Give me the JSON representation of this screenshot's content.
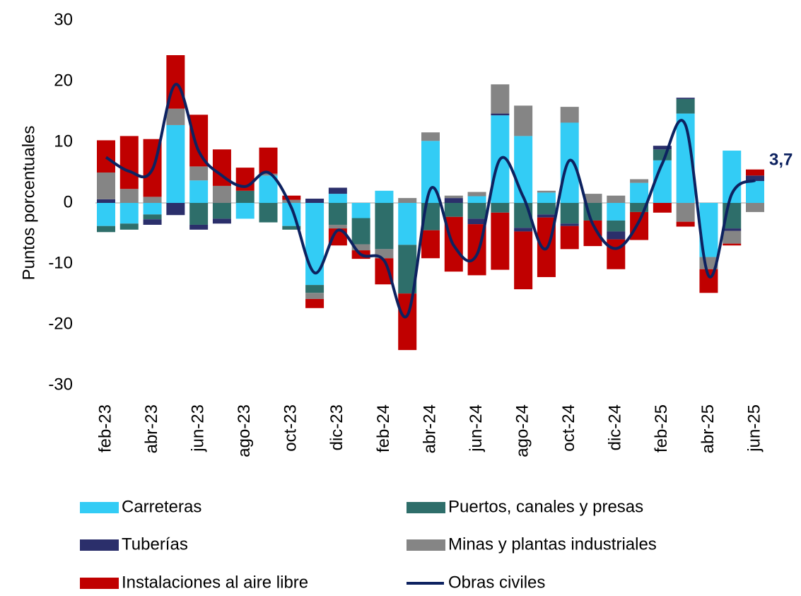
{
  "chart_data": {
    "type": "bar-line",
    "y_label": "Puntos porcentuales",
    "categories": [
      "feb-23",
      null,
      "abr-23",
      null,
      "jun-23",
      null,
      "ago-23",
      null,
      "oct-23",
      null,
      "dic-23",
      null,
      "feb-24",
      null,
      "abr-24",
      null,
      "jun-24",
      null,
      "ago-24",
      null,
      "oct-24",
      null,
      "dic-24",
      null,
      "feb-25",
      null,
      "abr-25",
      null,
      "jun-25"
    ],
    "ylim": [
      -30,
      30
    ],
    "yticks": [
      -30,
      -20,
      -10,
      0,
      10,
      20,
      30
    ],
    "series": [
      {
        "name": "Carreteras",
        "type": "bar",
        "color": "#33ccf5",
        "values": [
          -3.8,
          -3.4,
          -1.9,
          12.8,
          3.7,
          0,
          -2.6,
          4.5,
          -3.8,
          -13.5,
          1.5,
          -2.5,
          2.0,
          -6.9,
          10.2,
          0,
          1.1,
          14.4,
          11.0,
          1.7,
          13.2,
          0,
          -2.9,
          3.3,
          7.0,
          14.7,
          -8.9,
          8.6,
          3.6
        ]
      },
      {
        "name": "Puertos, canales y presas",
        "type": "bar",
        "color": "#2e6e6a",
        "values": [
          -1.0,
          -1.0,
          -0.8,
          0,
          -3.6,
          -2.6,
          2.0,
          -3.2,
          -0.6,
          -1.3,
          -3.6,
          -4.3,
          -7.6,
          -8.0,
          -4.5,
          -2.3,
          -2.6,
          -1.6,
          -4.1,
          -1.9,
          -3.4,
          -2.9,
          -1.8,
          -1.5,
          1.8,
          2.4,
          0,
          -4.2,
          0
        ]
      },
      {
        "name": "Tuberías",
        "type": "bar",
        "color": "#2b2f6b",
        "values": [
          0.6,
          0,
          -0.9,
          -2.0,
          -0.8,
          -0.8,
          0,
          0,
          0,
          0.7,
          1.0,
          0,
          0,
          0,
          0,
          0.8,
          -0.9,
          0.3,
          -0.6,
          -0.5,
          -0.4,
          0,
          -1.3,
          0,
          0.6,
          0.2,
          0,
          -0.4,
          0.9
        ]
      },
      {
        "name": "Minas y plantas industriales",
        "type": "bar",
        "color": "#858585",
        "values": [
          4.4,
          2.3,
          1.0,
          2.7,
          2.3,
          2.8,
          0,
          0.3,
          0.5,
          -1.0,
          -0.6,
          -1.0,
          -1.5,
          0.8,
          1.4,
          0.4,
          0.7,
          4.8,
          5.0,
          0.3,
          2.6,
          1.5,
          1.2,
          0.6,
          0,
          -3.1,
          -2.0,
          -2.1,
          -1.5
        ]
      },
      {
        "name": "Instalaciones al aire libre",
        "type": "bar",
        "color": "#c00000",
        "values": [
          5.3,
          8.7,
          9.5,
          8.8,
          8.5,
          6.0,
          3.8,
          4.3,
          0.7,
          -1.5,
          -2.8,
          -1.4,
          -4.3,
          -9.3,
          -4.6,
          -9.0,
          -8.4,
          -9.4,
          -9.5,
          -9.8,
          -3.8,
          -4.2,
          -4.9,
          -4.6,
          -1.6,
          -0.8,
          -3.9,
          -0.3,
          1.0
        ]
      },
      {
        "name": "Obras civiles",
        "type": "line",
        "color": "#0d2260",
        "values": [
          7.5,
          5.2,
          5.5,
          19.5,
          8.5,
          4.5,
          2.7,
          5.0,
          -0.8,
          -11.5,
          -4.5,
          -8.5,
          -9.5,
          -18.5,
          2.3,
          -7.0,
          -8.5,
          7.2,
          1.0,
          -7.5,
          7.0,
          -3.5,
          -7.5,
          -3.0,
          6.5,
          12.8,
          -12.0,
          1.5,
          3.7
        ],
        "value_labels": [
          null,
          null,
          null,
          null,
          null,
          null,
          null,
          null,
          null,
          null,
          null,
          null,
          null,
          null,
          null,
          null,
          null,
          null,
          null,
          null,
          null,
          null,
          null,
          null,
          null,
          null,
          null,
          null,
          "3,7"
        ]
      }
    ]
  }
}
